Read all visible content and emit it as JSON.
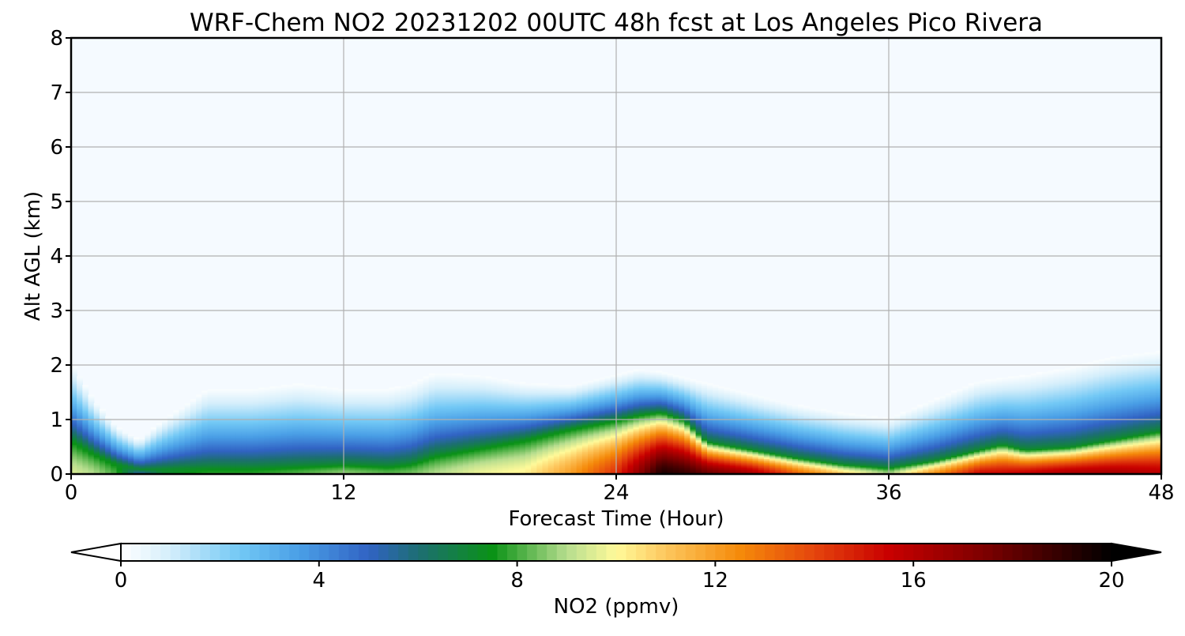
{
  "chart_data": {
    "type": "heatmap",
    "title": "WRF-Chem NO2  20231202 00UTC 48h fcst at Los Angeles Pico Rivera",
    "xlabel": "Forecast Time (Hour)",
    "ylabel": "Alt AGL (km)",
    "xlim": [
      0,
      48
    ],
    "ylim": [
      0,
      8
    ],
    "xticks": [
      "0",
      "12",
      "24",
      "36",
      "48"
    ],
    "yticks": [
      "0",
      "1",
      "2",
      "3",
      "4",
      "5",
      "6",
      "7",
      "8"
    ],
    "grid": true,
    "colorbar": {
      "label": "NO2  (ppmv)",
      "min": 0,
      "max": 20,
      "ticks": [
        "0",
        "4",
        "8",
        "12",
        "16",
        "20"
      ],
      "extend": "both",
      "orientation": "horizontal",
      "placement": "bottom"
    },
    "colormap": [
      {
        "value": 0,
        "color": "#ffffff"
      },
      {
        "value": 1,
        "color": "#d4eefb"
      },
      {
        "value": 2.4,
        "color": "#72c8f5"
      },
      {
        "value": 3.6,
        "color": "#4a9fe6"
      },
      {
        "value": 5,
        "color": "#3163c4"
      },
      {
        "value": 6,
        "color": "#1d6e73"
      },
      {
        "value": 7.5,
        "color": "#0a9216"
      },
      {
        "value": 9,
        "color": "#b6dd8e"
      },
      {
        "value": 10,
        "color": "#fffa9a"
      },
      {
        "value": 11,
        "color": "#fdc75e"
      },
      {
        "value": 12.5,
        "color": "#f58a0a"
      },
      {
        "value": 14,
        "color": "#e5450d"
      },
      {
        "value": 15.5,
        "color": "#c90000"
      },
      {
        "value": 17.5,
        "color": "#7a0000"
      },
      {
        "value": 20,
        "color": "#000000"
      }
    ],
    "background_color": "#f5faff",
    "x_hours": [
      0,
      1,
      2,
      3,
      4,
      6,
      8,
      10,
      12,
      14,
      15,
      16,
      18,
      20,
      22,
      24,
      25,
      26,
      27,
      28,
      30,
      32,
      34,
      36,
      38,
      40,
      41,
      42,
      44,
      46,
      48
    ],
    "profile_fields": [
      "surface_value_ppmv",
      "mixing_depth_km",
      "plume_depth_km"
    ],
    "profiles": [
      [
        9.5,
        2.1,
        0.65
      ],
      [
        9.0,
        1.4,
        0.4
      ],
      [
        8.0,
        0.9,
        0.2
      ],
      [
        5.0,
        0.65,
        0.09
      ],
      [
        7.0,
        1.0,
        0.1
      ],
      [
        7.8,
        1.6,
        0.12
      ],
      [
        7.8,
        1.6,
        0.12
      ],
      [
        8.2,
        1.7,
        0.15
      ],
      [
        8.8,
        1.6,
        0.18
      ],
      [
        8.3,
        1.6,
        0.15
      ],
      [
        8.5,
        1.7,
        0.2
      ],
      [
        9.0,
        1.9,
        0.35
      ],
      [
        9.8,
        1.85,
        0.5
      ],
      [
        10.2,
        1.7,
        0.65
      ],
      [
        12.0,
        1.65,
        0.85
      ],
      [
        14.5,
        1.85,
        1.0
      ],
      [
        17.0,
        1.95,
        1.1
      ],
      [
        19.5,
        1.9,
        1.15
      ],
      [
        19.0,
        1.8,
        1.0
      ],
      [
        18.0,
        1.7,
        0.6
      ],
      [
        16.5,
        1.5,
        0.45
      ],
      [
        13.5,
        1.3,
        0.3
      ],
      [
        11.0,
        1.15,
        0.18
      ],
      [
        9.0,
        1.05,
        0.12
      ],
      [
        12.5,
        1.4,
        0.25
      ],
      [
        15.5,
        1.75,
        0.45
      ],
      [
        15.5,
        1.8,
        0.55
      ],
      [
        15.8,
        1.85,
        0.45
      ],
      [
        16.5,
        2.0,
        0.5
      ],
      [
        16.5,
        2.2,
        0.65
      ],
      [
        16.0,
        2.3,
        0.8
      ]
    ]
  }
}
